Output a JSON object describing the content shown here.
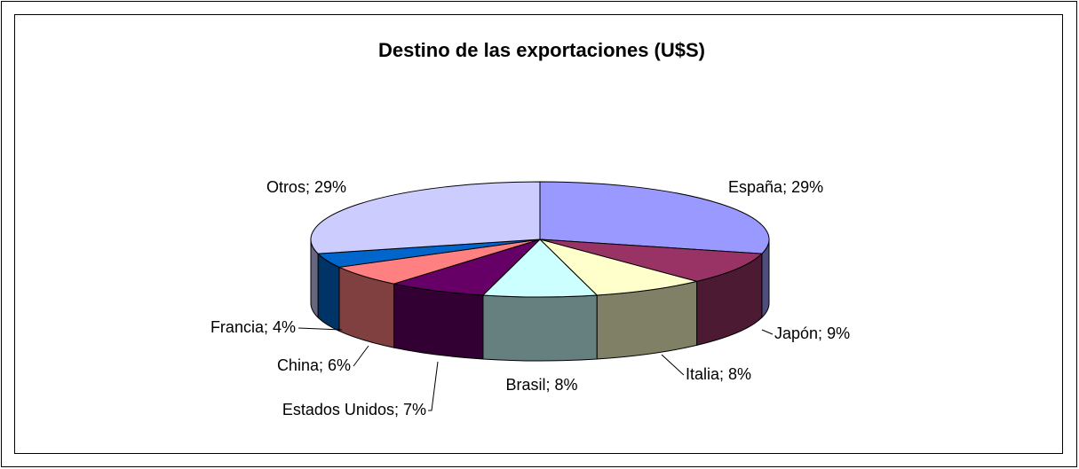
{
  "chart_data": {
    "type": "pie3d",
    "title": "Destino de las exportaciones (U$S)",
    "categories": [
      "España",
      "Japón",
      "Italia",
      "Brasil",
      "Estados Unidos",
      "China",
      "Francia",
      "Otros"
    ],
    "values": [
      29,
      9,
      8,
      8,
      7,
      6,
      4,
      29
    ],
    "value_labels": [
      "29%",
      "9%",
      "8%",
      "8%",
      "7%",
      "6%",
      "4%",
      "29%"
    ],
    "colors": [
      "#9999ff",
      "#993366",
      "#ffffcc",
      "#ccffff",
      "#660066",
      "#ff8080",
      "#0066cc",
      "#ccccff"
    ]
  }
}
